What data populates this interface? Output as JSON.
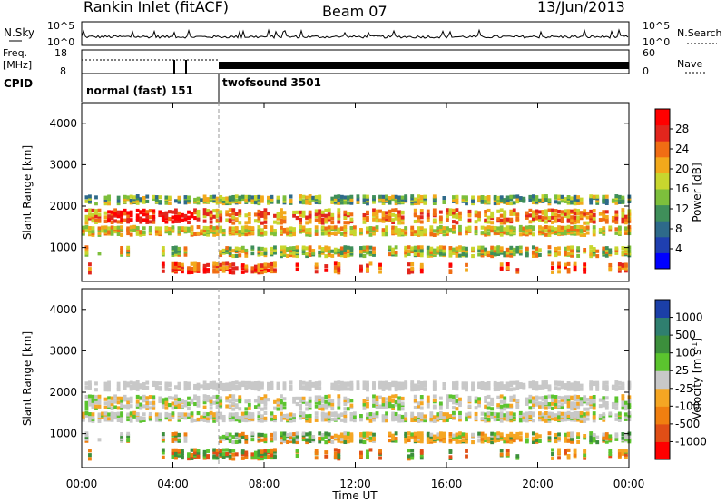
{
  "header": {
    "station": "Rankin Inlet (fitACF)",
    "beam": "Beam 07",
    "date": "13/Jun/2013"
  },
  "noise_panel": {
    "left_label": "N.Sky",
    "right_label": "N.Search",
    "left_ticks": [
      "10^5",
      "10^0"
    ],
    "right_ticks": [
      "10^5",
      "10^0"
    ]
  },
  "freq_panel": {
    "left_label_1": "Freq.",
    "left_label_2": "[MHz]",
    "left_ticks": [
      "18",
      "8"
    ],
    "right_label": "Nave",
    "right_ticks": [
      "60",
      "0"
    ]
  },
  "cpid_panel": {
    "label": "CPID",
    "segments": [
      {
        "name": "normal (fast) 151",
        "start_hour": 0,
        "end_hour": 6
      },
      {
        "name": "twofsound 3501",
        "start_hour": 6,
        "end_hour": 24
      }
    ]
  },
  "chart_data": [
    {
      "type": "heatmap",
      "title": "Power",
      "ylabel": "Slant Range [km]",
      "xlabel": "Time UT",
      "ylim": [
        180,
        4500
      ],
      "xlim": [
        0,
        24
      ],
      "y_ticks": [
        "1000",
        "2000",
        "3000",
        "4000"
      ],
      "x_ticks": [
        "00:00",
        "04:00",
        "08:00",
        "12:00",
        "16:00",
        "20:00",
        "00:00"
      ],
      "colorbar_label": "Power [dB]",
      "colorbar_ticks": [
        "4",
        "8",
        "12",
        "16",
        "20",
        "24",
        "28"
      ],
      "colorbar_colors": [
        "#0000ff",
        "#1f3fb0",
        "#2e6a8a",
        "#3f8f5a",
        "#7dbf3c",
        "#c8d62e",
        "#f2a91b",
        "#f06d14",
        "#e2261d",
        "#ff0000"
      ]
    },
    {
      "type": "heatmap",
      "title": "Velocity",
      "ylabel": "Slant Range [km]",
      "xlabel": "Time UT",
      "ylim": [
        180,
        4500
      ],
      "xlim": [
        0,
        24
      ],
      "y_ticks": [
        "1000",
        "2000",
        "3000",
        "4000"
      ],
      "x_ticks": [
        "00:00",
        "04:00",
        "08:00",
        "12:00",
        "16:00",
        "20:00",
        "00:00"
      ],
      "colorbar_label": "Velocity [m s-1]",
      "colorbar_ticks": [
        "1000",
        "500",
        "100",
        "25",
        "-25",
        "-100",
        "-500",
        "-1000"
      ],
      "colorbar_colors": [
        "#1b3fa8",
        "#2f7f6f",
        "#3c8f3c",
        "#5bc42e",
        "#c8c8c8",
        "#f5a623",
        "#f07f10",
        "#e04e16",
        "#ff0000"
      ]
    }
  ],
  "x_axis_title": "Time UT"
}
